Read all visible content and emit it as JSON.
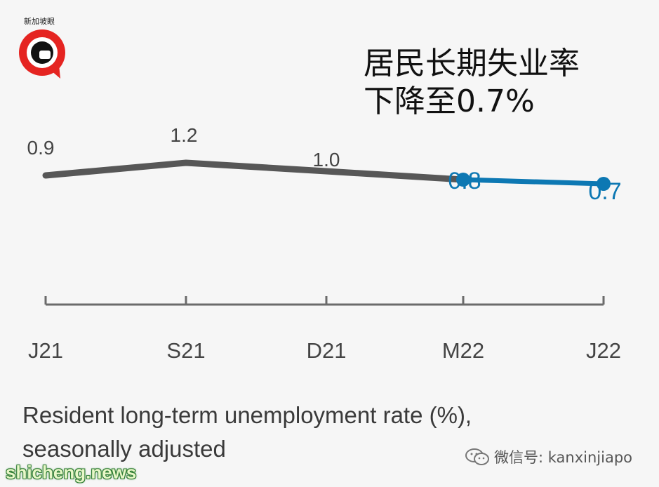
{
  "logo": {
    "text": "新加坡眼"
  },
  "headline": {
    "line1": "居民长期失业率",
    "line2": "下降至0.7%"
  },
  "chart_data": {
    "type": "line",
    "categories": [
      "J21",
      "S21",
      "D21",
      "M22",
      "J22"
    ],
    "values": [
      0.9,
      1.2,
      1.0,
      0.8,
      0.7
    ],
    "value_labels": [
      "0.9",
      "1.2",
      "1.0",
      "0.8",
      "0.7"
    ],
    "highlight_from_index": 3,
    "title": "Resident long-term unemployment rate (%), seasonally adjusted",
    "xlabel": "",
    "ylabel": "",
    "grid": false,
    "colors": {
      "base": "#575757",
      "highlight": "#0d78b3",
      "axis": "#6b6b6b",
      "label": "#444444"
    }
  },
  "caption": {
    "line1": "Resident long-term unemployment rate (%),",
    "line2": "seasonally adjusted"
  },
  "wechat": {
    "text": "微信号: kanxinjiapo"
  },
  "watermark": {
    "text": "shicheng.news"
  }
}
